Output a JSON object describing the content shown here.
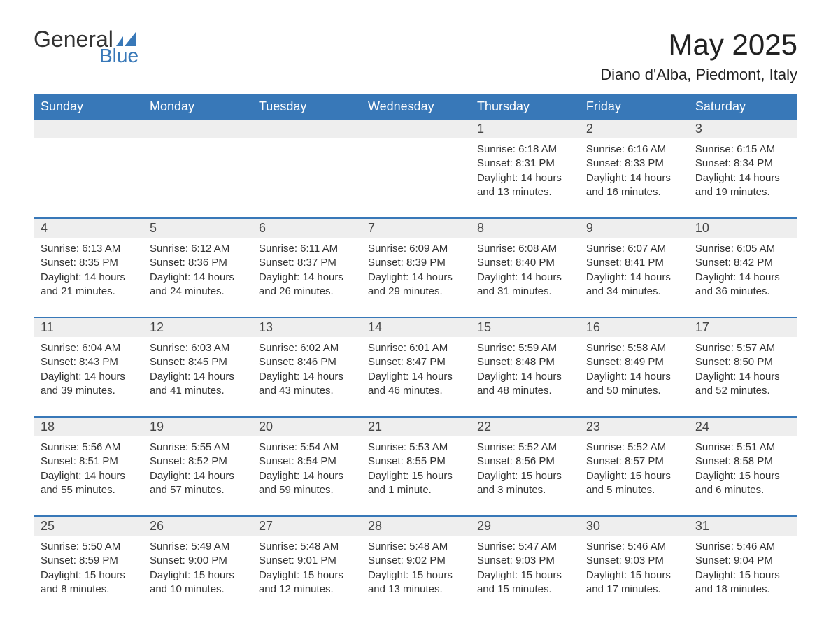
{
  "logo": {
    "text1": "General",
    "text2": "Blue",
    "mark_color": "#3878b8"
  },
  "title": "May 2025",
  "location": "Diano d'Alba, Piedmont, Italy",
  "colors": {
    "header_bg": "#3878b8",
    "header_text": "#ffffff",
    "daynum_bg": "#eeeeee",
    "text": "#333333",
    "rule": "#3878b8",
    "page_bg": "#ffffff"
  },
  "fonts": {
    "title_pt": 42,
    "location_pt": 22,
    "header_pt": 18,
    "daynum_pt": 18,
    "body_pt": 15
  },
  "weekdays": [
    "Sunday",
    "Monday",
    "Tuesday",
    "Wednesday",
    "Thursday",
    "Friday",
    "Saturday"
  ],
  "weeks": [
    [
      null,
      null,
      null,
      null,
      {
        "n": "1",
        "sunrise": "6:18 AM",
        "sunset": "8:31 PM",
        "daylight": "14 hours and 13 minutes."
      },
      {
        "n": "2",
        "sunrise": "6:16 AM",
        "sunset": "8:33 PM",
        "daylight": "14 hours and 16 minutes."
      },
      {
        "n": "3",
        "sunrise": "6:15 AM",
        "sunset": "8:34 PM",
        "daylight": "14 hours and 19 minutes."
      }
    ],
    [
      {
        "n": "4",
        "sunrise": "6:13 AM",
        "sunset": "8:35 PM",
        "daylight": "14 hours and 21 minutes."
      },
      {
        "n": "5",
        "sunrise": "6:12 AM",
        "sunset": "8:36 PM",
        "daylight": "14 hours and 24 minutes."
      },
      {
        "n": "6",
        "sunrise": "6:11 AM",
        "sunset": "8:37 PM",
        "daylight": "14 hours and 26 minutes."
      },
      {
        "n": "7",
        "sunrise": "6:09 AM",
        "sunset": "8:39 PM",
        "daylight": "14 hours and 29 minutes."
      },
      {
        "n": "8",
        "sunrise": "6:08 AM",
        "sunset": "8:40 PM",
        "daylight": "14 hours and 31 minutes."
      },
      {
        "n": "9",
        "sunrise": "6:07 AM",
        "sunset": "8:41 PM",
        "daylight": "14 hours and 34 minutes."
      },
      {
        "n": "10",
        "sunrise": "6:05 AM",
        "sunset": "8:42 PM",
        "daylight": "14 hours and 36 minutes."
      }
    ],
    [
      {
        "n": "11",
        "sunrise": "6:04 AM",
        "sunset": "8:43 PM",
        "daylight": "14 hours and 39 minutes."
      },
      {
        "n": "12",
        "sunrise": "6:03 AM",
        "sunset": "8:45 PM",
        "daylight": "14 hours and 41 minutes."
      },
      {
        "n": "13",
        "sunrise": "6:02 AM",
        "sunset": "8:46 PM",
        "daylight": "14 hours and 43 minutes."
      },
      {
        "n": "14",
        "sunrise": "6:01 AM",
        "sunset": "8:47 PM",
        "daylight": "14 hours and 46 minutes."
      },
      {
        "n": "15",
        "sunrise": "5:59 AM",
        "sunset": "8:48 PM",
        "daylight": "14 hours and 48 minutes."
      },
      {
        "n": "16",
        "sunrise": "5:58 AM",
        "sunset": "8:49 PM",
        "daylight": "14 hours and 50 minutes."
      },
      {
        "n": "17",
        "sunrise": "5:57 AM",
        "sunset": "8:50 PM",
        "daylight": "14 hours and 52 minutes."
      }
    ],
    [
      {
        "n": "18",
        "sunrise": "5:56 AM",
        "sunset": "8:51 PM",
        "daylight": "14 hours and 55 minutes."
      },
      {
        "n": "19",
        "sunrise": "5:55 AM",
        "sunset": "8:52 PM",
        "daylight": "14 hours and 57 minutes."
      },
      {
        "n": "20",
        "sunrise": "5:54 AM",
        "sunset": "8:54 PM",
        "daylight": "14 hours and 59 minutes."
      },
      {
        "n": "21",
        "sunrise": "5:53 AM",
        "sunset": "8:55 PM",
        "daylight": "15 hours and 1 minute."
      },
      {
        "n": "22",
        "sunrise": "5:52 AM",
        "sunset": "8:56 PM",
        "daylight": "15 hours and 3 minutes."
      },
      {
        "n": "23",
        "sunrise": "5:52 AM",
        "sunset": "8:57 PM",
        "daylight": "15 hours and 5 minutes."
      },
      {
        "n": "24",
        "sunrise": "5:51 AM",
        "sunset": "8:58 PM",
        "daylight": "15 hours and 6 minutes."
      }
    ],
    [
      {
        "n": "25",
        "sunrise": "5:50 AM",
        "sunset": "8:59 PM",
        "daylight": "15 hours and 8 minutes."
      },
      {
        "n": "26",
        "sunrise": "5:49 AM",
        "sunset": "9:00 PM",
        "daylight": "15 hours and 10 minutes."
      },
      {
        "n": "27",
        "sunrise": "5:48 AM",
        "sunset": "9:01 PM",
        "daylight": "15 hours and 12 minutes."
      },
      {
        "n": "28",
        "sunrise": "5:48 AM",
        "sunset": "9:02 PM",
        "daylight": "15 hours and 13 minutes."
      },
      {
        "n": "29",
        "sunrise": "5:47 AM",
        "sunset": "9:03 PM",
        "daylight": "15 hours and 15 minutes."
      },
      {
        "n": "30",
        "sunrise": "5:46 AM",
        "sunset": "9:03 PM",
        "daylight": "15 hours and 17 minutes."
      },
      {
        "n": "31",
        "sunrise": "5:46 AM",
        "sunset": "9:04 PM",
        "daylight": "15 hours and 18 minutes."
      }
    ]
  ],
  "labels": {
    "sunrise": "Sunrise:",
    "sunset": "Sunset:",
    "daylight": "Daylight:"
  }
}
